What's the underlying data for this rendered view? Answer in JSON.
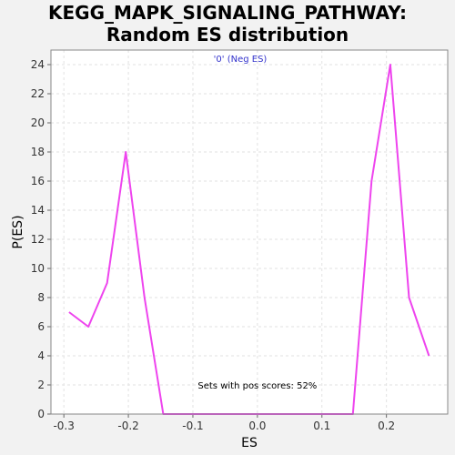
{
  "chart_data": {
    "type": "line",
    "title_line1": "KEGG_MAPK_SIGNALING_PATHWAY:",
    "title_line2": "Random ES distribution",
    "xlabel": "ES",
    "ylabel": "P(ES)",
    "xlim": [
      -0.32,
      0.295
    ],
    "ylim": [
      0,
      25
    ],
    "xticks": [
      -0.3,
      -0.2,
      -0.1,
      0.0,
      0.1,
      0.2
    ],
    "xtick_labels": [
      "-0.3",
      "-0.2",
      "-0.1",
      "0.0",
      "0.1",
      "0.2"
    ],
    "yticks": [
      0,
      2,
      4,
      6,
      8,
      10,
      12,
      14,
      16,
      18,
      20,
      22,
      24
    ],
    "ytick_labels": [
      "0",
      "2",
      "4",
      "6",
      "8",
      "10",
      "12",
      "14",
      "16",
      "18",
      "20",
      "22",
      "24"
    ],
    "grid": true,
    "legend_placement": "top-center",
    "series": [
      {
        "name": "'0' (Neg ES)",
        "color": "#ee44ee",
        "legend_color": "#3333cc",
        "x": [
          -0.292,
          -0.262,
          -0.233,
          -0.204,
          -0.175,
          -0.146,
          -0.117,
          -0.088,
          -0.059,
          -0.03,
          -0.001,
          0.028,
          0.057,
          0.086,
          0.115,
          0.148,
          0.177,
          0.206,
          0.235,
          0.266
        ],
        "y": [
          7,
          6,
          9,
          18,
          8,
          0,
          0,
          0,
          0,
          0,
          0,
          0,
          0,
          0,
          0,
          0,
          16,
          24,
          8,
          4
        ]
      }
    ],
    "annotation": "Sets with pos scores: 52%"
  }
}
